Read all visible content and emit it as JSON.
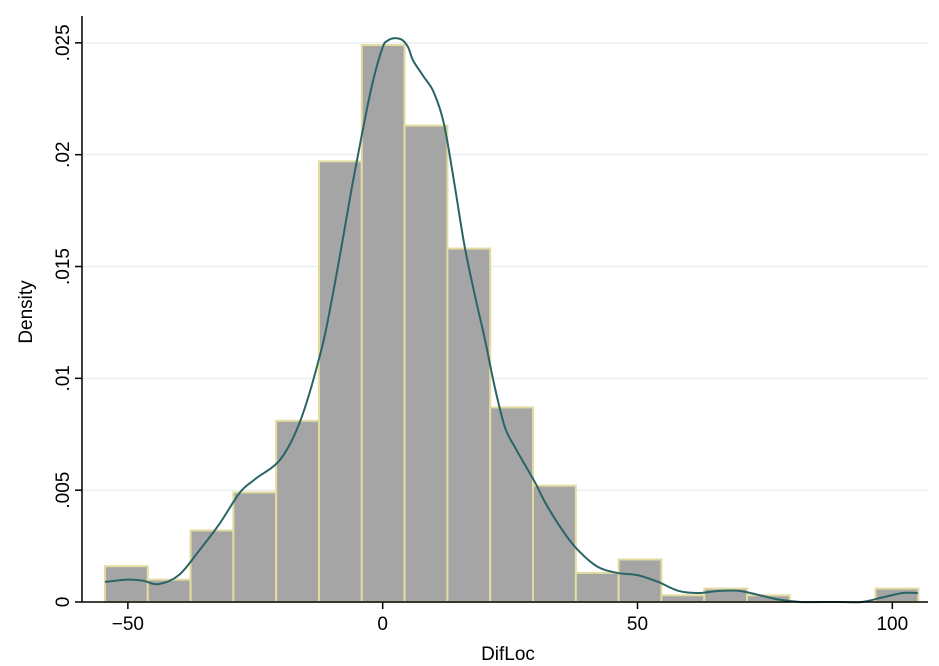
{
  "chart_data": {
    "type": "bar",
    "title": "",
    "xlabel": "DifLoc",
    "ylabel": "Density",
    "xlim": [
      -59,
      107
    ],
    "ylim": [
      0,
      0.0262
    ],
    "grid": true,
    "x_ticks": [
      {
        "value": -50,
        "label": "−50"
      },
      {
        "value": 0,
        "label": "0"
      },
      {
        "value": 50,
        "label": "50"
      },
      {
        "value": 100,
        "label": "100"
      }
    ],
    "y_ticks": [
      {
        "value": 0,
        "label": "0"
      },
      {
        "value": 0.005,
        "label": ".005"
      },
      {
        "value": 0.01,
        "label": ".01"
      },
      {
        "value": 0.015,
        "label": ".015"
      },
      {
        "value": 0.02,
        "label": ".02"
      },
      {
        "value": 0.025,
        "label": ".025"
      }
    ],
    "bins": [
      {
        "start": -54.5,
        "end": -46.1,
        "density": 0.0016
      },
      {
        "start": -46.1,
        "end": -37.7,
        "density": 0.001
      },
      {
        "start": -37.7,
        "end": -29.3,
        "density": 0.0032
      },
      {
        "start": -29.3,
        "end": -20.9,
        "density": 0.0049
      },
      {
        "start": -20.9,
        "end": -12.5,
        "density": 0.0081
      },
      {
        "start": -12.5,
        "end": -4.1,
        "density": 0.0197
      },
      {
        "start": -4.1,
        "end": 4.3,
        "density": 0.0249
      },
      {
        "start": 4.3,
        "end": 12.7,
        "density": 0.0213
      },
      {
        "start": 12.7,
        "end": 21.1,
        "density": 0.0158
      },
      {
        "start": 21.1,
        "end": 29.5,
        "density": 0.0087
      },
      {
        "start": 29.5,
        "end": 37.9,
        "density": 0.0052
      },
      {
        "start": 37.9,
        "end": 46.3,
        "density": 0.0013
      },
      {
        "start": 46.3,
        "end": 54.7,
        "density": 0.0019
      },
      {
        "start": 54.7,
        "end": 63.1,
        "density": 0.0003
      },
      {
        "start": 63.1,
        "end": 71.5,
        "density": 0.0006
      },
      {
        "start": 71.5,
        "end": 79.9,
        "density": 0.0003
      },
      {
        "start": 79.9,
        "end": 88.3,
        "density": 0
      },
      {
        "start": 88.3,
        "end": 96.7,
        "density": 0
      },
      {
        "start": 96.7,
        "end": 105.1,
        "density": 0.0006
      }
    ],
    "kde": {
      "x": [
        -54.5,
        -50,
        -47,
        -44,
        -40,
        -36,
        -32,
        -28,
        -25,
        -20,
        -16,
        -12,
        -10,
        -8,
        -6,
        -4,
        -2,
        0,
        1,
        2,
        3,
        4,
        5,
        6,
        8,
        10,
        12,
        14,
        16,
        18,
        20,
        22,
        24,
        26,
        28,
        30,
        32,
        35,
        38,
        42,
        46,
        50,
        54,
        58,
        62,
        66,
        70,
        74,
        78,
        82,
        86,
        90,
        94,
        98,
        102,
        105
      ],
      "y": [
        0.0009,
        0.001,
        0.00095,
        0.0008,
        0.0012,
        0.0023,
        0.0035,
        0.0049,
        0.0055,
        0.0064,
        0.0082,
        0.0113,
        0.0135,
        0.016,
        0.0186,
        0.021,
        0.0232,
        0.0248,
        0.0251,
        0.0252,
        0.0252,
        0.0251,
        0.0248,
        0.0242,
        0.0235,
        0.0228,
        0.0214,
        0.0188,
        0.016,
        0.0138,
        0.0118,
        0.0096,
        0.0078,
        0.0069,
        0.0061,
        0.0053,
        0.0044,
        0.0033,
        0.0024,
        0.0016,
        0.0013,
        0.0012,
        0.0009,
        0.0005,
        0.0004,
        0.0005,
        0.0005,
        0.0003,
        0.0001,
        0,
        0,
        0,
        0,
        0.0002,
        0.0004,
        0.0004
      ]
    },
    "colors": {
      "bar_fill": "#a5a5a5",
      "bar_edge": "#e3dca0",
      "kde_line": "#2b6466",
      "grid": "#e9f0f1",
      "axis": "#000000"
    }
  }
}
